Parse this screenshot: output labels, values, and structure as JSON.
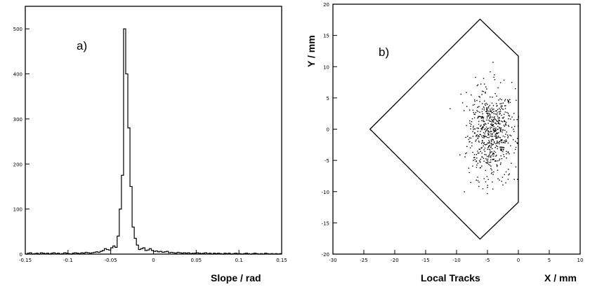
{
  "chart_data": [
    {
      "type": "histogram",
      "panel_label": "a)",
      "title": "",
      "xlabel": "Slope / rad",
      "ylabel": "",
      "xlim": [
        -0.15,
        0.15
      ],
      "ylim": [
        0,
        550
      ],
      "x_ticks": [
        -0.15,
        -0.1,
        -0.05,
        0,
        0.05,
        0.1,
        0.15
      ],
      "x_tick_labels": [
        "-0.15",
        "-0.1",
        "-0.05",
        "0",
        "0.05",
        "0.1",
        "0.15"
      ],
      "y_ticks": [
        0,
        100,
        200,
        300,
        400,
        500
      ],
      "y_tick_labels": [
        "0",
        "100",
        "200",
        "300",
        "400",
        "500"
      ],
      "grid": false,
      "bin_width": 0.0025,
      "bin_start": -0.15,
      "counts": [
        0,
        2,
        3,
        0,
        1,
        2,
        0,
        3,
        2,
        1,
        2,
        0,
        2,
        3,
        1,
        2,
        0,
        1,
        3,
        2,
        1,
        0,
        2,
        3,
        2,
        1,
        3,
        2,
        4,
        3,
        2,
        3,
        4,
        5,
        4,
        6,
        8,
        12,
        10,
        9,
        14,
        18,
        15,
        40,
        100,
        175,
        500,
        400,
        280,
        150,
        60,
        35,
        20,
        10,
        12,
        14,
        8,
        9,
        12,
        8,
        6,
        7,
        5,
        6,
        4,
        5,
        6,
        3,
        4,
        3,
        2,
        4,
        3,
        2,
        3,
        2,
        3,
        1,
        2,
        2,
        3,
        2,
        1,
        2,
        3,
        1,
        2,
        0,
        2,
        1,
        2,
        1,
        0,
        2,
        1,
        2,
        0,
        1,
        2,
        1,
        1,
        0,
        1,
        2,
        1,
        0,
        1,
        2,
        1,
        0,
        1,
        0,
        2,
        1,
        0,
        1,
        0,
        1,
        0,
        1
      ]
    },
    {
      "type": "scatter",
      "panel_label": "b)",
      "title": "",
      "xlabel": "X / mm",
      "ylabel": "Y / mm",
      "caption": "Local Tracks",
      "xlim": [
        -30,
        10
      ],
      "ylim": [
        -20,
        20
      ],
      "x_ticks": [
        -30,
        -25,
        -20,
        -15,
        -10,
        -5,
        0,
        5,
        10
      ],
      "x_tick_labels": [
        "-30",
        "-25",
        "-20",
        "-15",
        "-10",
        "-5",
        "0",
        "5",
        "10"
      ],
      "y_ticks": [
        -20,
        -15,
        -10,
        -5,
        0,
        5,
        10,
        15,
        20
      ],
      "y_tick_labels": [
        "-20",
        "-15",
        "-10",
        "-5",
        "0",
        "5",
        "10",
        "15",
        "20"
      ],
      "grid": false,
      "outline": [
        [
          -24,
          0
        ],
        [
          -6.2,
          17.6
        ],
        [
          0,
          11.7
        ],
        [
          0,
          -11.7
        ],
        [
          -6.2,
          -17.6
        ]
      ],
      "cluster": {
        "count": 650,
        "center": [
          -4.5,
          -0.8
        ],
        "sigma": [
          1.9,
          3.6
        ],
        "x_max": 0
      }
    }
  ]
}
